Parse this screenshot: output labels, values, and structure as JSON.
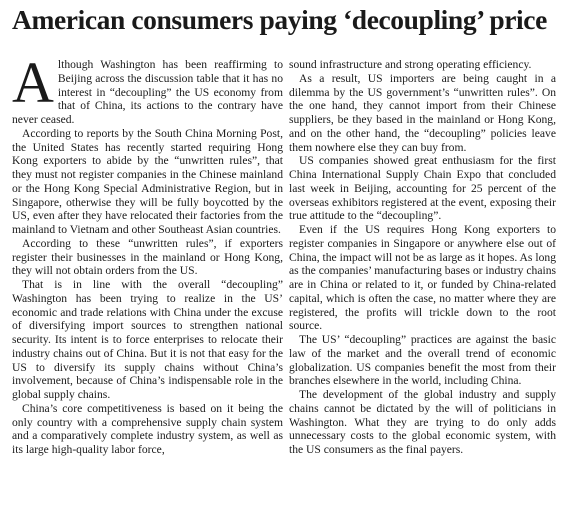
{
  "headline": "American consumers paying ‘decoupling’ price",
  "article": {
    "drop_cap": "A",
    "columns": [
      {
        "paragraphs": [
          "lthough Washington has been reaffirming to Beijing across the discussion table that it has no interest in “decoupling” the US economy from that of China, its actions to the contrary have never ceased.",
          "According to reports by the South China Morning Post, the United States has recently started requiring Hong Kong exporters to abide by the “unwritten rules”, that they must not register companies in the Chinese mainland or the Hong Kong Special Administrative Region, but in Singapore, otherwise they will be fully boycotted by the US, even after they have relocated their factories from the mainland to Vietnam and other Southeast Asian countries.",
          "According to these “unwritten rules”, if exporters register their businesses in the mainland or Hong Kong, they will not obtain orders from the US.",
          "That is in line with the overall “decoupling” Washington has been trying to realize in the US’ economic and trade relations with China under the excuse of diversifying import sources to strengthen national security. Its intent is to force enterprises to relocate their industry chains out of China. But it is not that easy for the US to diversify its supply chains without China’s involvement, because of China’s indispensable role in the global supply chains.",
          "China’s core competitiveness is based on it being the only country with a comprehensive supply chain system and a comparatively complete industry system, as well as its large high-quality labor force,"
        ]
      },
      {
        "paragraphs": [
          "sound infrastructure and strong operating efficiency.",
          "As a result, US importers are being caught in a dilemma by the US government’s “unwritten rules”. On the one hand, they cannot import from their Chinese suppliers, be they based in the mainland or Hong Kong, and on the other hand, the “decoupling” policies leave them nowhere else they can buy from.",
          "US companies showed great enthusiasm for the first China International Supply Chain Expo that concluded last week in Beijing, accounting for 25 percent of the overseas exhibitors registered at the event, exposing their true attitude to the “decoupling”.",
          "Even if the US requires Hong Kong exporters to register companies in Singapore or anywhere else out of China, the impact will not be as large as it hopes. As long as the companies’ manufacturing bases or industry chains are in China or related to it, or funded by China-related capital, which is often the case, no matter where they are registered, the profits will trickle down to the root source.",
          "The US’ “decoupling” practices are against the basic law of the market and the overall trend of economic globalization. US companies benefit the most from their branches elsewhere in the world, including China.",
          "The development of the global industry and supply chains cannot be dictated by the will of politicians in Washington. What they are trying to do only adds unnecessary costs to the global economic system, with the US consumers as the final payers."
        ]
      }
    ]
  }
}
